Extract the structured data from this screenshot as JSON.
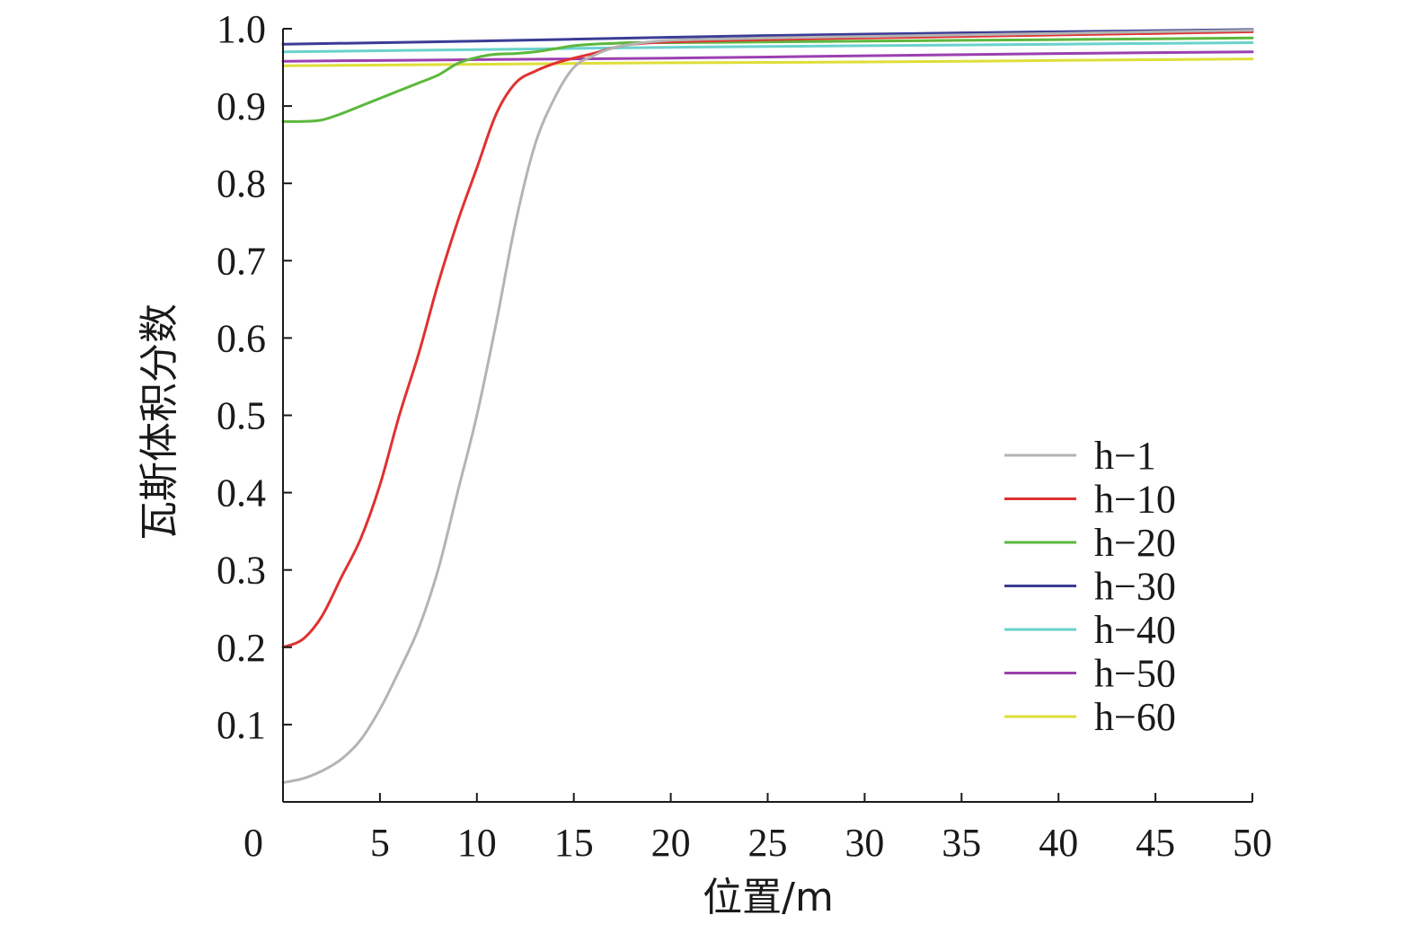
{
  "chart_data": {
    "type": "line",
    "title": "",
    "xlabel": "位置/m",
    "ylabel": "瓦斯体积分数",
    "xlim": [
      0,
      50
    ],
    "ylim": [
      0,
      1.0
    ],
    "x_origin_label": "0",
    "xticks": [
      5,
      10,
      15,
      20,
      25,
      30,
      35,
      40,
      45,
      50
    ],
    "yticks": [
      0.1,
      0.2,
      0.3,
      0.4,
      0.5,
      0.6,
      0.7,
      0.8,
      0.9,
      1.0
    ],
    "xtick_labels": [
      "5",
      "10",
      "15",
      "20",
      "25",
      "30",
      "35",
      "40",
      "45",
      "50"
    ],
    "ytick_labels": [
      "0.1",
      "0.2",
      "0.3",
      "0.4",
      "0.5",
      "0.6",
      "0.7",
      "0.8",
      "0.9",
      "1.0"
    ],
    "grid": false,
    "legend_position": "right-center",
    "series": [
      {
        "name": "h−1",
        "color": "#b4b4b4",
        "x": [
          0,
          1,
          2,
          3,
          4,
          5,
          6,
          7,
          8,
          9,
          10,
          11,
          12,
          13,
          14,
          15,
          16,
          17,
          18,
          20,
          25,
          30,
          35,
          40,
          45,
          50
        ],
        "y": [
          0.025,
          0.03,
          0.04,
          0.055,
          0.08,
          0.12,
          0.17,
          0.225,
          0.3,
          0.4,
          0.5,
          0.62,
          0.75,
          0.85,
          0.91,
          0.95,
          0.965,
          0.975,
          0.98,
          0.985,
          0.988,
          0.99,
          0.992,
          0.994,
          0.996,
          0.998
        ]
      },
      {
        "name": "h−10",
        "color": "#e03131",
        "x": [
          0,
          1,
          2,
          3,
          4,
          5,
          6,
          7,
          8,
          9,
          10,
          11,
          12,
          13,
          14,
          15,
          16,
          17,
          18,
          20,
          25,
          30,
          35,
          40,
          45,
          50
        ],
        "y": [
          0.2,
          0.21,
          0.24,
          0.29,
          0.34,
          0.41,
          0.5,
          0.58,
          0.67,
          0.75,
          0.82,
          0.89,
          0.93,
          0.945,
          0.955,
          0.962,
          0.968,
          0.975,
          0.98,
          0.983,
          0.986,
          0.988,
          0.99,
          0.992,
          0.994,
          0.996
        ]
      },
      {
        "name": "h−20",
        "color": "#5cb83c",
        "x": [
          0,
          1,
          2,
          3,
          4,
          5,
          6,
          7,
          8,
          9,
          10,
          11,
          12,
          13,
          14,
          15,
          16,
          17,
          18,
          20,
          25,
          30,
          35,
          40,
          45,
          50
        ],
        "y": [
          0.88,
          0.88,
          0.882,
          0.89,
          0.9,
          0.91,
          0.92,
          0.93,
          0.94,
          0.955,
          0.963,
          0.967,
          0.968,
          0.97,
          0.974,
          0.978,
          0.98,
          0.981,
          0.982,
          0.982,
          0.983,
          0.984,
          0.985,
          0.986,
          0.987,
          0.988
        ]
      },
      {
        "name": "h−30",
        "color": "#3c3c96",
        "x": [
          0,
          10,
          20,
          30,
          40,
          50
        ],
        "y": [
          0.98,
          0.984,
          0.989,
          0.993,
          0.996,
          0.999
        ]
      },
      {
        "name": "h−40",
        "color": "#6ad2cc",
        "x": [
          0,
          10,
          20,
          30,
          40,
          50
        ],
        "y": [
          0.97,
          0.973,
          0.976,
          0.978,
          0.98,
          0.982
        ]
      },
      {
        "name": "h−50",
        "color": "#9b40b0",
        "x": [
          0,
          10,
          20,
          30,
          40,
          50
        ],
        "y": [
          0.958,
          0.96,
          0.962,
          0.965,
          0.968,
          0.97
        ]
      },
      {
        "name": "h−60",
        "color": "#dede3a",
        "x": [
          0,
          10,
          20,
          30,
          40,
          50
        ],
        "y": [
          0.952,
          0.954,
          0.956,
          0.957,
          0.959,
          0.961
        ]
      }
    ]
  }
}
